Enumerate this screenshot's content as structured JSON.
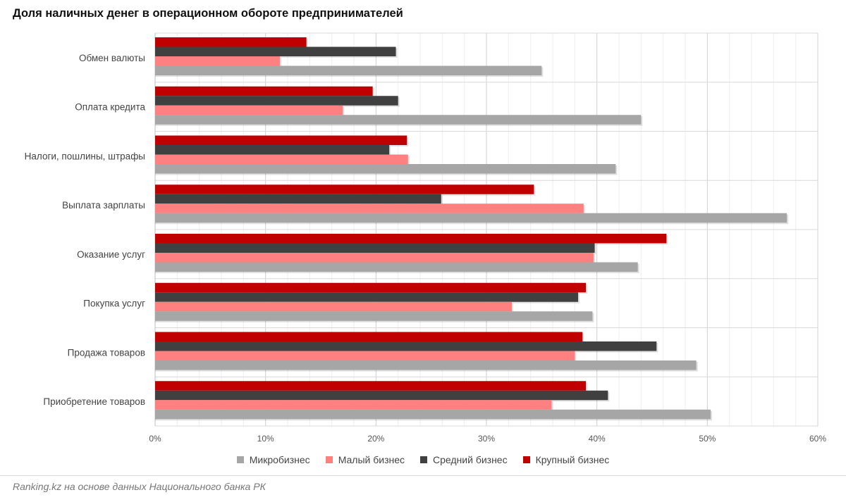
{
  "title": "Доля наличных денег в операционном обороте предпринимателей",
  "source": "Ranking.kz на основе данных Национального банка РК",
  "chart_data": {
    "type": "bar",
    "orientation": "horizontal",
    "title": "Доля наличных денег в операционном обороте предпринимателей",
    "xlabel": "",
    "ylabel": "",
    "xlim": [
      0,
      60
    ],
    "x_tick_labels": [
      "0%",
      "10%",
      "20%",
      "30%",
      "40%",
      "50%",
      "60%"
    ],
    "grid": true,
    "legend_position": "bottom",
    "categories": [
      "Обмен валюты",
      "Оплата кредита",
      "Налоги, пошлины, штрафы",
      "Выплата зарплаты",
      "Оказание услуг",
      "Покупка услуг",
      "Продажа товаров",
      "Приобретение товаров"
    ],
    "series": [
      {
        "name": "Микробизнес",
        "color": "#a6a6a6",
        "values": [
          35.0,
          44.0,
          41.7,
          57.2,
          43.7,
          39.6,
          49.0,
          50.3
        ]
      },
      {
        "name": "Малый бизнес",
        "color": "#ff8080",
        "values": [
          11.3,
          17.0,
          22.9,
          38.8,
          39.7,
          32.3,
          38.0,
          35.9
        ]
      },
      {
        "name": "Средний бизнес",
        "color": "#404040",
        "values": [
          21.8,
          22.0,
          21.2,
          25.9,
          39.8,
          38.3,
          45.4,
          41.0
        ]
      },
      {
        "name": "Крупный бизнес",
        "color": "#c00000",
        "values": [
          13.7,
          19.7,
          22.8,
          34.3,
          46.3,
          39.0,
          38.7,
          39.0
        ]
      }
    ]
  }
}
